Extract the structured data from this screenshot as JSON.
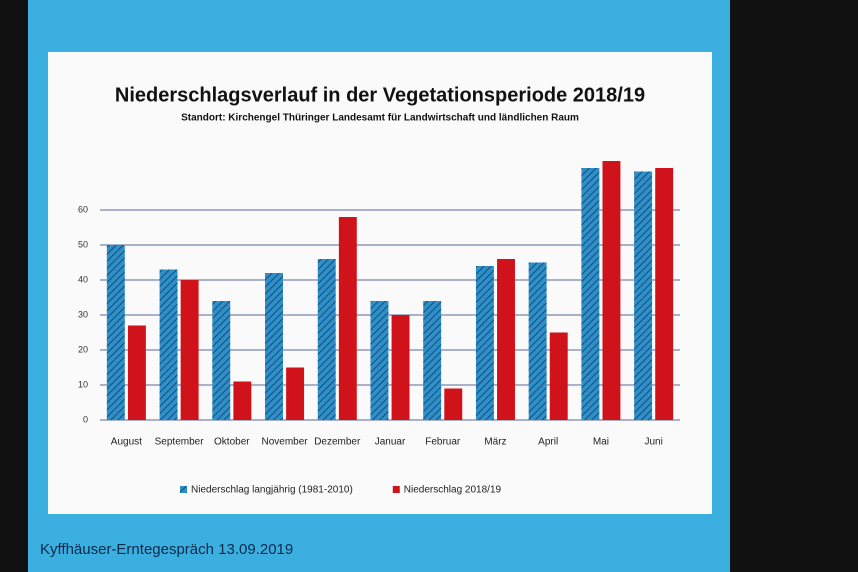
{
  "chart_data": {
    "type": "bar",
    "title": "Niederschlagsverlauf in der Vegetationsperiode 2018/19",
    "subtitle": "Standort: Kirchengel  Thüringer Landesamt  für Landwirtschaft und ländlichen Raum",
    "footer": "Kyffhäuser-Erntegespräch 13.09.2019",
    "categories": [
      "August",
      "September",
      "Oktober",
      "November",
      "Dezember",
      "Januar",
      "Februar",
      "März",
      "April",
      "Mai",
      "Juni"
    ],
    "series": [
      {
        "name": "Niederschlag langjährig (1981-2010)",
        "color": "#2e8fc9",
        "hatched": true,
        "values": [
          50,
          43,
          34,
          42,
          46,
          34,
          34,
          44,
          45,
          72,
          71
        ]
      },
      {
        "name": "Niederschlag 2018/19",
        "color": "#d0121b",
        "hatched": false,
        "values": [
          27,
          40,
          11,
          15,
          58,
          30,
          9,
          46,
          25,
          74,
          72
        ]
      }
    ],
    "ylim": [
      0,
      80
    ],
    "yticks": [
      0,
      10,
      20,
      30,
      40,
      50,
      60
    ],
    "grid": true,
    "legend": "bottom"
  }
}
